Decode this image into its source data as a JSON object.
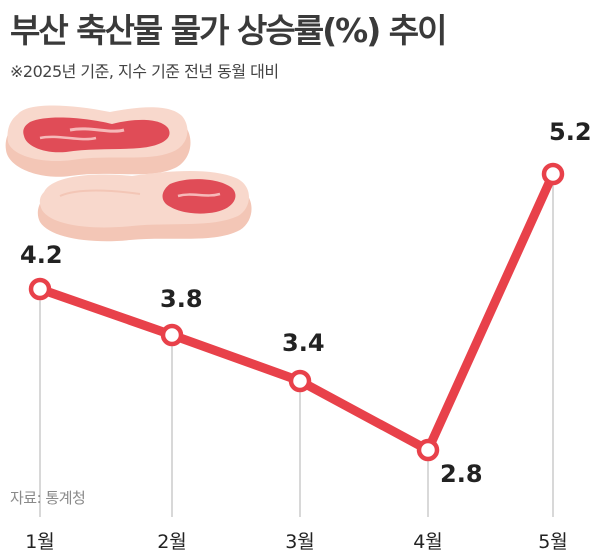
{
  "header": {
    "title": "부산 축산물 물가 상승률(%) 추이",
    "subtitle": "※2025년 기준, 지수 기준 전년 동월 대비"
  },
  "source": "자료: 통계청",
  "illustration": {
    "icon": "meat-steak-icon"
  },
  "colors": {
    "line": "#e8414a",
    "guide": "#cccccc",
    "meat_fat": "#f5cfc0",
    "meat_red": "#e04c57"
  },
  "chart_data": {
    "type": "line",
    "categories": [
      "1월",
      "2월",
      "3월",
      "4월",
      "5월"
    ],
    "series": [
      {
        "values": [
          4.2,
          3.8,
          3.4,
          2.8,
          5.2
        ],
        "labels": [
          "4.2",
          "3.8",
          "3.4",
          "2.8",
          "5.2"
        ]
      }
    ],
    "grid": false,
    "legend": "none"
  }
}
